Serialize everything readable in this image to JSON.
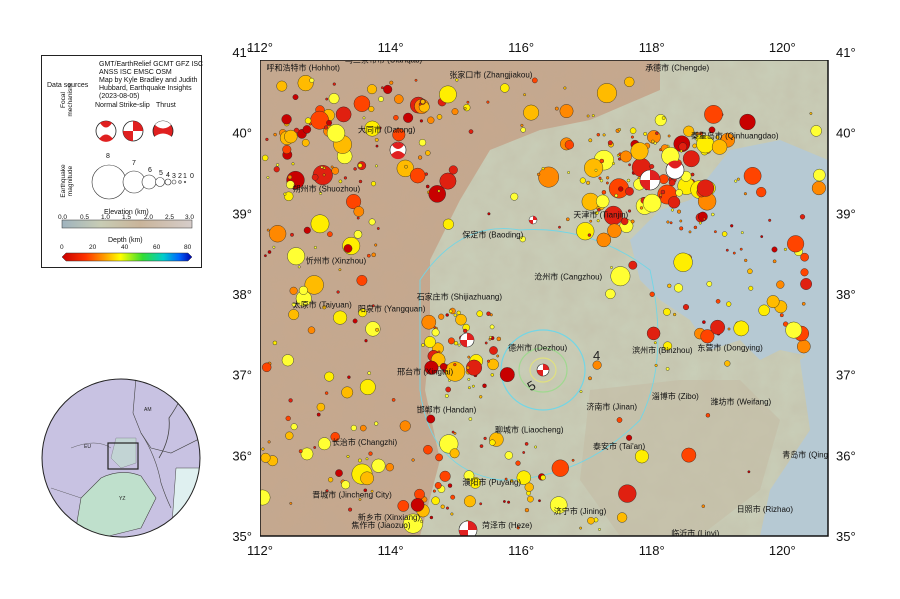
{
  "legend": {
    "data_sources_label": "Data sources",
    "data_sources_text": [
      "GMT/EarthRelief GCMT GFZ ISC",
      "ANSS ISC EMSC OSM",
      "Map by Kyle Bradley and Judith",
      "Hubbard, Earthquake Insights",
      "(2023-08-05)"
    ],
    "focal_label": "Focal mechanism",
    "mech_types": [
      "Normal",
      "Strike-slip",
      "Thrust"
    ],
    "magnitude_label": "Earthquake magnitude",
    "magnitudes": [
      "8",
      "7",
      "6",
      "5",
      "4",
      "3",
      "2",
      "1",
      "0"
    ],
    "elevation_title": "Elevation (km)",
    "elevation_ticks": [
      "0.0",
      "0.5",
      "1.0",
      "1.5",
      "2.0",
      "2.5",
      "3.0"
    ],
    "depth_title": "Depth (km)",
    "depth_ticks": [
      "0",
      "20",
      "40",
      "60",
      "80"
    ]
  },
  "axes": {
    "lon_ticks": [
      "112°",
      "114°",
      "116°",
      "118°",
      "120°"
    ],
    "lat_ticks": [
      "41°",
      "40°",
      "39°",
      "38°",
      "37°",
      "36°",
      "35°"
    ],
    "lon_range": [
      112,
      120.7
    ],
    "lat_range": [
      35,
      40.9
    ]
  },
  "cities": [
    {
      "name": "呼和浩特市 (Hohhot)",
      "lon": 112.1,
      "lat": 40.77
    },
    {
      "name": "乌兰察布市 (Ulanqab)",
      "lon": 113.3,
      "lat": 40.87
    },
    {
      "name": "张家口市 (Zhangjiakou)",
      "lon": 114.9,
      "lat": 40.68
    },
    {
      "name": "承德市 (Chengde)",
      "lon": 117.9,
      "lat": 40.77
    },
    {
      "name": "大同市 (Datong)",
      "lon": 113.5,
      "lat": 40.0
    },
    {
      "name": "秦皇岛市 (Qinhuangdao)",
      "lon": 118.6,
      "lat": 39.93
    },
    {
      "name": "朔州市 (Shuozhou)",
      "lon": 112.5,
      "lat": 39.27
    },
    {
      "name": "天津市 (Tianjin)",
      "lon": 116.8,
      "lat": 38.95
    },
    {
      "name": "保定市 (Baoding)",
      "lon": 115.1,
      "lat": 38.7
    },
    {
      "name": "忻州市 (Xinzhou)",
      "lon": 112.7,
      "lat": 38.38
    },
    {
      "name": "沧州市 (Cangzhou)",
      "lon": 116.2,
      "lat": 38.18
    },
    {
      "name": "石家庄市 (Shijiazhuang)",
      "lon": 114.4,
      "lat": 37.93
    },
    {
      "name": "太原市 (Taiyuan)",
      "lon": 112.5,
      "lat": 37.83
    },
    {
      "name": "阳泉市 (Yangquan)",
      "lon": 113.5,
      "lat": 37.78
    },
    {
      "name": "德州市 (Dezhou)",
      "lon": 115.8,
      "lat": 37.3
    },
    {
      "name": "滨州市 (Binzhou)",
      "lon": 117.7,
      "lat": 37.27
    },
    {
      "name": "东营市 (Dongying)",
      "lon": 118.7,
      "lat": 37.3
    },
    {
      "name": "邢台市 (Xingtai)",
      "lon": 114.1,
      "lat": 37.0
    },
    {
      "name": "淄博市 (Zibo)",
      "lon": 118.0,
      "lat": 36.7
    },
    {
      "name": "潍坊市 (Weifang)",
      "lon": 118.9,
      "lat": 36.63
    },
    {
      "name": "邯郸市 (Handan)",
      "lon": 114.4,
      "lat": 36.53
    },
    {
      "name": "济南市 (Jinan)",
      "lon": 117.0,
      "lat": 36.57
    },
    {
      "name": "聊城市 (Liaocheng)",
      "lon": 115.6,
      "lat": 36.28
    },
    {
      "name": "长治市 (Changzhi)",
      "lon": 113.1,
      "lat": 36.13
    },
    {
      "name": "泰安市 (Tai'an)",
      "lon": 117.1,
      "lat": 36.08
    },
    {
      "name": "青岛市 (Qingdao)",
      "lon": 120.0,
      "lat": 35.97
    },
    {
      "name": "濮阳市 (Puyang)",
      "lon": 115.1,
      "lat": 35.63
    },
    {
      "name": "晋城市 (Jincheng City)",
      "lon": 112.8,
      "lat": 35.48
    },
    {
      "name": "济宁市 (Jining)",
      "lon": 116.5,
      "lat": 35.27
    },
    {
      "name": "日照市 (Rizhao)",
      "lon": 119.3,
      "lat": 35.3
    },
    {
      "name": "新乡市 (Xinxiang)",
      "lon": 113.5,
      "lat": 35.2
    },
    {
      "name": "焦作市 (Jiaozuo)",
      "lon": 113.4,
      "lat": 35.1
    },
    {
      "name": "菏泽市 (Heze)",
      "lon": 115.4,
      "lat": 35.1
    },
    {
      "name": "临沂市 (Linyi)",
      "lon": 118.3,
      "lat": 35.0
    }
  ],
  "contour_labels": [
    "4",
    "5"
  ],
  "inset_labels": [
    "AM",
    "EU",
    "YZ"
  ],
  "colors": {
    "ocean": "#b6c9d3",
    "plain": "#c9ceb8",
    "mountain": "#c6a88e",
    "contour": "#72d6e6",
    "bbox": "#222222"
  }
}
